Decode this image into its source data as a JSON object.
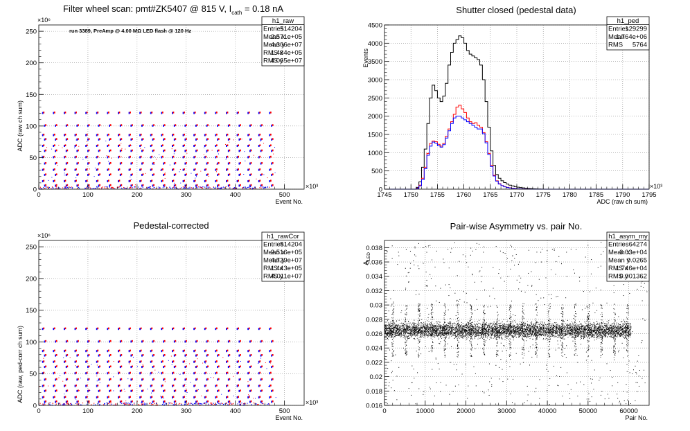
{
  "chart_data": [
    {
      "id": "raw",
      "type": "scatter",
      "title": "Filter wheel scan: pmt#ZK5407 @ 815 V, I_cath = 0.18 nA",
      "title_parts": {
        "main": "Filter wheel scan: pmt#ZK5407 @   815 V, I",
        "sub": "cath",
        "tail": " = 0.18 nA"
      },
      "xlabel": "Event No.",
      "ylabel": "ADC (raw ch sum)",
      "x_multiplier": "×10³",
      "y_multiplier": "×10⁶",
      "xlim": [
        0,
        540
      ],
      "ylim": [
        0,
        260
      ],
      "xticks": [
        0,
        100,
        200,
        300,
        400,
        500
      ],
      "yticks": [
        0,
        50,
        100,
        150,
        200,
        250
      ],
      "grid": true,
      "annotation": "run 3389, PreAmp @ 4.00 MΩ LED flash @  120 Hz",
      "levels": [
        0,
        5,
        12,
        22,
        30,
        40,
        50,
        60,
        68,
        78,
        85,
        100,
        120
      ],
      "block_period": 22,
      "x_end": 470,
      "stats": {
        "name": "h1_raw",
        "rows": [
          [
            "Entries",
            "514204"
          ],
          [
            "Mean x",
            "2.571e+05"
          ],
          [
            "Mean y",
            "4.306e+07"
          ],
          [
            "RMS x",
            "1.484e+05"
          ],
          [
            "RMS y",
            "4.065e+07"
          ]
        ]
      },
      "colors": {
        "red": "#ff0000",
        "blue": "#0000ff"
      }
    },
    {
      "id": "ped",
      "type": "histogram",
      "title": "Shutter closed (pedestal data)",
      "xlabel": "ADC (raw ch sum)",
      "ylabel": "Events",
      "x_multiplier": "×10³",
      "xlim": [
        1745,
        1795
      ],
      "ylim": [
        0,
        4500
      ],
      "xticks": [
        1745,
        1750,
        1755,
        1760,
        1765,
        1770,
        1775,
        1780,
        1785,
        1790,
        1795
      ],
      "yticks": [
        0,
        500,
        1000,
        1500,
        2000,
        2500,
        3000,
        3500,
        4000,
        4500
      ],
      "grid": true,
      "bin_start": 1745,
      "bin_width": 0.5,
      "series": [
        {
          "color": "#000000",
          "values": [
            0,
            0,
            0,
            0,
            0,
            0,
            0,
            0,
            0,
            0,
            0,
            0,
            50,
            200,
            600,
            1100,
            1800,
            2500,
            2850,
            2700,
            2500,
            2400,
            2550,
            2900,
            3400,
            3750,
            4000,
            4100,
            4200,
            4150,
            4000,
            3800,
            3700,
            3650,
            3600,
            3550,
            3400,
            3000,
            2400,
            1700,
            1050,
            650,
            400,
            300,
            230,
            180,
            140,
            110,
            90,
            70,
            55,
            45,
            35,
            25,
            18,
            14,
            10,
            6,
            4,
            2,
            1,
            0,
            0,
            0,
            0,
            0,
            0,
            0,
            0,
            0,
            0,
            0,
            0,
            0,
            0,
            0,
            0,
            0,
            0,
            0,
            0,
            0,
            0,
            0,
            0,
            0,
            0,
            0,
            0,
            0,
            0,
            0,
            0,
            0,
            0,
            0,
            0,
            0,
            0,
            0
          ]
        },
        {
          "color": "#ff0000",
          "values": [
            0,
            0,
            0,
            0,
            0,
            0,
            0,
            0,
            0,
            0,
            0,
            0,
            30,
            110,
            300,
            600,
            980,
            1250,
            1320,
            1300,
            1230,
            1180,
            1250,
            1450,
            1650,
            1850,
            2050,
            2250,
            2300,
            2200,
            2100,
            1950,
            1850,
            1800,
            1820,
            1750,
            1700,
            1550,
            1300,
            980,
            650,
            380,
            230,
            150,
            100,
            70,
            50,
            38,
            27,
            18,
            12,
            8,
            5,
            3,
            2,
            1,
            0,
            0,
            0,
            0,
            0,
            0,
            0,
            0,
            0,
            0,
            0,
            0,
            0,
            0,
            0,
            0,
            0,
            0,
            0,
            0,
            0,
            0,
            0,
            0,
            0,
            0,
            0,
            0,
            0,
            0,
            0,
            0,
            0,
            0,
            0,
            0,
            0,
            0,
            0,
            0,
            0,
            0,
            0,
            0
          ]
        },
        {
          "color": "#0000ff",
          "values": [
            0,
            0,
            0,
            0,
            0,
            0,
            0,
            0,
            0,
            0,
            0,
            0,
            20,
            90,
            260,
            560,
            930,
            1180,
            1290,
            1260,
            1190,
            1150,
            1220,
            1400,
            1600,
            1800,
            1950,
            2000,
            2000,
            1950,
            1900,
            1850,
            1800,
            1750,
            1700,
            1650,
            1650,
            1520,
            1270,
            950,
            620,
            360,
            220,
            140,
            95,
            65,
            45,
            33,
            22,
            15,
            10,
            7,
            4,
            3,
            2,
            1,
            0,
            0,
            0,
            0,
            0,
            0,
            0,
            0,
            0,
            0,
            0,
            0,
            0,
            0,
            0,
            0,
            0,
            0,
            0,
            0,
            0,
            0,
            0,
            0,
            0,
            0,
            0,
            0,
            0,
            0,
            0,
            0,
            0,
            0,
            0,
            0,
            0,
            0,
            0,
            0,
            0,
            0,
            0,
            0
          ]
        }
      ],
      "stats": {
        "name": "h1_ped",
        "rows": [
          [
            "Entries",
            "129299"
          ],
          [
            "Mean",
            "1.764e+06"
          ],
          [
            "RMS",
            "5764"
          ]
        ]
      }
    },
    {
      "id": "rawCor",
      "type": "scatter",
      "title": "Pedestal-corrected",
      "xlabel": "Event No.",
      "ylabel": "ADC (raw, ped-corr ch sum)",
      "x_multiplier": "×10³",
      "y_multiplier": "×10⁶",
      "xlim": [
        0,
        540
      ],
      "ylim": [
        0,
        260
      ],
      "xticks": [
        0,
        100,
        200,
        300,
        400,
        500
      ],
      "yticks": [
        0,
        50,
        100,
        150,
        200,
        250
      ],
      "grid": true,
      "levels": [
        0,
        5,
        12,
        22,
        30,
        40,
        50,
        60,
        68,
        78,
        85,
        100,
        120
      ],
      "block_period": 22,
      "x_end": 470,
      "stats": {
        "name": "h1_rawCor",
        "rows": [
          [
            "Entries",
            "514204"
          ],
          [
            "Mean x",
            "2.516e+05"
          ],
          [
            "Mean y",
            "4.729e+07"
          ],
          [
            "RMS x",
            "1.443e+05"
          ],
          [
            "RMS y",
            "4.011e+07"
          ]
        ]
      },
      "colors": {
        "red": "#ff0000",
        "blue": "#0000ff"
      }
    },
    {
      "id": "asym",
      "type": "scatter",
      "title": "Pair-wise Asymmetry vs. pair No.",
      "xlabel": "Pair No.",
      "ylabel": "A_LED",
      "ylabel_parts": {
        "main": "A",
        "sub": "LED"
      },
      "xlim": [
        0,
        65000
      ],
      "ylim": [
        0.016,
        0.039
      ],
      "xticks": [
        0,
        10000,
        20000,
        30000,
        40000,
        50000,
        60000
      ],
      "yticks": [
        0.016,
        0.018,
        0.02,
        0.022,
        0.024,
        0.026,
        0.028,
        0.03,
        0.032,
        0.034,
        0.036,
        0.038
      ],
      "grid": true,
      "band_center": 0.0265,
      "band_halfwidth": 0.0008,
      "x_end": 60500,
      "spike_period": 3200,
      "stats": {
        "name": "h1_asym_my",
        "rows": [
          [
            "Entries",
            "64274"
          ],
          [
            "Mean x",
            "3.03e+04"
          ],
          [
            "Mean y",
            "0.0265"
          ],
          [
            "RMS x",
            "1.746e+04"
          ],
          [
            "RMS y",
            "0.001362"
          ]
        ]
      }
    }
  ]
}
